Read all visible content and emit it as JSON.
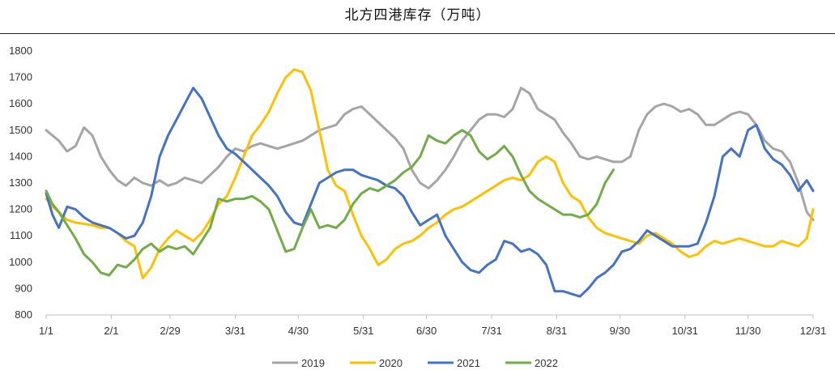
{
  "chart_data": {
    "type": "line",
    "title": "北方四港库存（万吨）",
    "xlabel": "",
    "ylabel": "",
    "ylim": [
      800,
      1800
    ],
    "yticks": [
      800,
      900,
      1000,
      1100,
      1200,
      1300,
      1400,
      1500,
      1600,
      1700,
      1800
    ],
    "xlim": [
      0,
      365
    ],
    "xticks": [
      {
        "label": "1/1",
        "day": 0
      },
      {
        "label": "2/1",
        "day": 31
      },
      {
        "label": "2/29",
        "day": 59
      },
      {
        "label": "3/31",
        "day": 90
      },
      {
        "label": "4/30",
        "day": 120
      },
      {
        "label": "5/31",
        "day": 151
      },
      {
        "label": "6/30",
        "day": 181
      },
      {
        "label": "7/31",
        "day": 212
      },
      {
        "label": "8/31",
        "day": 243
      },
      {
        "label": "9/30",
        "day": 273
      },
      {
        "label": "10/31",
        "day": 304
      },
      {
        "label": "11/30",
        "day": 334
      },
      {
        "label": "12/31",
        "day": 365
      }
    ],
    "grid": false,
    "legend": "bottom",
    "series": [
      {
        "name": "2019",
        "color": "#A5A5A5",
        "x": [
          0,
          3,
          6,
          10,
          14,
          18,
          22,
          26,
          30,
          34,
          38,
          42,
          46,
          50,
          54,
          58,
          62,
          66,
          70,
          74,
          78,
          82,
          86,
          90,
          94,
          98,
          102,
          106,
          110,
          114,
          118,
          122,
          126,
          130,
          134,
          138,
          142,
          146,
          150,
          154,
          158,
          162,
          166,
          170,
          174,
          178,
          182,
          186,
          190,
          194,
          198,
          202,
          206,
          210,
          214,
          218,
          222,
          226,
          230,
          234,
          238,
          242,
          246,
          250,
          254,
          258,
          262,
          266,
          270,
          274,
          278,
          282,
          286,
          290,
          294,
          298,
          302,
          306,
          310,
          314,
          318,
          322,
          326,
          330,
          334,
          338,
          342,
          346,
          350,
          354,
          358,
          362,
          365
        ],
        "y": [
          1500,
          1480,
          1460,
          1420,
          1440,
          1510,
          1480,
          1400,
          1350,
          1310,
          1290,
          1320,
          1300,
          1290,
          1310,
          1290,
          1300,
          1320,
          1310,
          1300,
          1330,
          1360,
          1400,
          1430,
          1420,
          1440,
          1450,
          1440,
          1430,
          1440,
          1450,
          1460,
          1480,
          1500,
          1510,
          1520,
          1560,
          1580,
          1590,
          1560,
          1530,
          1500,
          1470,
          1430,
          1350,
          1300,
          1280,
          1310,
          1350,
          1400,
          1460,
          1500,
          1540,
          1560,
          1560,
          1550,
          1580,
          1660,
          1640,
          1580,
          1560,
          1540,
          1490,
          1450,
          1400,
          1390,
          1400,
          1390,
          1380,
          1380,
          1400,
          1500,
          1560,
          1590,
          1600,
          1590,
          1570,
          1580,
          1560,
          1520,
          1520,
          1540,
          1560,
          1570,
          1560,
          1520,
          1460,
          1430,
          1420,
          1380,
          1300,
          1190,
          1160
        ]
      },
      {
        "name": "2020",
        "color": "#FFC000",
        "x": [
          0,
          3,
          6,
          10,
          14,
          18,
          22,
          26,
          30,
          34,
          38,
          42,
          46,
          50,
          54,
          58,
          62,
          66,
          70,
          74,
          78,
          82,
          86,
          90,
          94,
          98,
          102,
          106,
          110,
          114,
          118,
          122,
          126,
          130,
          134,
          138,
          142,
          146,
          150,
          154,
          158,
          162,
          166,
          170,
          174,
          178,
          182,
          186,
          190,
          194,
          198,
          202,
          206,
          210,
          214,
          218,
          222,
          226,
          230,
          234,
          238,
          242,
          246,
          250,
          254,
          258,
          262,
          266,
          270,
          274,
          278,
          282,
          286,
          290,
          294,
          298,
          302,
          306,
          310,
          314,
          318,
          322,
          326,
          330,
          334,
          338,
          342,
          346,
          350,
          354,
          358,
          362,
          365
        ],
        "y": [
          1240,
          1210,
          1190,
          1160,
          1150,
          1145,
          1140,
          1130,
          1130,
          1110,
          1080,
          1060,
          940,
          980,
          1050,
          1090,
          1120,
          1100,
          1080,
          1110,
          1160,
          1220,
          1250,
          1320,
          1400,
          1480,
          1520,
          1570,
          1640,
          1700,
          1730,
          1720,
          1650,
          1500,
          1350,
          1290,
          1270,
          1180,
          1100,
          1050,
          990,
          1010,
          1050,
          1070,
          1080,
          1100,
          1130,
          1150,
          1180,
          1200,
          1210,
          1230,
          1250,
          1270,
          1290,
          1310,
          1320,
          1310,
          1330,
          1380,
          1400,
          1380,
          1300,
          1250,
          1230,
          1170,
          1130,
          1110,
          1100,
          1090,
          1080,
          1070,
          1100,
          1110,
          1090,
          1070,
          1040,
          1020,
          1030,
          1060,
          1080,
          1070,
          1080,
          1090,
          1080,
          1070,
          1060,
          1060,
          1080,
          1070,
          1060,
          1090,
          1200
        ]
      },
      {
        "name": "2021",
        "color": "#4472C4",
        "x": [
          0,
          3,
          6,
          10,
          14,
          18,
          22,
          26,
          30,
          34,
          38,
          42,
          46,
          50,
          54,
          58,
          62,
          66,
          70,
          74,
          78,
          82,
          86,
          90,
          94,
          98,
          102,
          106,
          110,
          114,
          118,
          122,
          126,
          130,
          134,
          138,
          142,
          146,
          150,
          154,
          158,
          162,
          166,
          170,
          174,
          178,
          182,
          186,
          190,
          194,
          198,
          202,
          206,
          210,
          214,
          218,
          222,
          226,
          230,
          234,
          238,
          242,
          246,
          250,
          254,
          258,
          262,
          266,
          270,
          274,
          278,
          282,
          286,
          290,
          294,
          298,
          302,
          306,
          310,
          314,
          318,
          322,
          326,
          330,
          334,
          338,
          342,
          346,
          350,
          354,
          358,
          362,
          365
        ],
        "y": [
          1260,
          1180,
          1130,
          1210,
          1200,
          1170,
          1150,
          1140,
          1130,
          1110,
          1090,
          1100,
          1150,
          1250,
          1400,
          1480,
          1540,
          1600,
          1660,
          1620,
          1550,
          1480,
          1430,
          1410,
          1380,
          1350,
          1320,
          1290,
          1250,
          1190,
          1150,
          1140,
          1220,
          1300,
          1320,
          1340,
          1350,
          1350,
          1330,
          1320,
          1310,
          1290,
          1280,
          1250,
          1190,
          1140,
          1160,
          1180,
          1100,
          1050,
          1000,
          970,
          960,
          990,
          1010,
          1080,
          1070,
          1040,
          1050,
          1030,
          990,
          890,
          890,
          880,
          870,
          900,
          940,
          960,
          990,
          1040,
          1050,
          1080,
          1120,
          1100,
          1080,
          1060,
          1060,
          1060,
          1070,
          1150,
          1250,
          1400,
          1430,
          1400,
          1500,
          1520,
          1430,
          1390,
          1370,
          1330,
          1270,
          1310,
          1270
        ]
      },
      {
        "name": "2022",
        "color": "#70AD47",
        "x": [
          0,
          3,
          6,
          10,
          14,
          18,
          22,
          26,
          30,
          34,
          38,
          42,
          46,
          50,
          54,
          58,
          62,
          66,
          70,
          74,
          78,
          82,
          86,
          90,
          94,
          98,
          102,
          106,
          110,
          114,
          118,
          122,
          126,
          130,
          134,
          138,
          142,
          146,
          150,
          154,
          158,
          162,
          166,
          170,
          174,
          178,
          182,
          186,
          190,
          194,
          198,
          202,
          206,
          210,
          214,
          218,
          222,
          226,
          230,
          234,
          238,
          242,
          246,
          250,
          254,
          258,
          262,
          266,
          270,
          274,
          278,
          282,
          286,
          290,
          294,
          298,
          302,
          306,
          310,
          314,
          318,
          322,
          326,
          330,
          334,
          338,
          342,
          346,
          350,
          354,
          358,
          362,
          365
        ],
        "y": [
          1270,
          1220,
          1190,
          1140,
          1090,
          1030,
          1000,
          960,
          950,
          990,
          980,
          1010,
          1050,
          1070,
          1040,
          1060,
          1050,
          1060,
          1030,
          1080,
          1130,
          1240,
          1230,
          1240,
          1240,
          1250,
          1230,
          1200,
          1120,
          1040,
          1050,
          1130,
          1200,
          1130,
          1140,
          1130,
          1160,
          1220,
          1260,
          1280,
          1270,
          1290,
          1310,
          1340,
          1360,
          1400,
          1480,
          1460,
          1450,
          1480,
          1500,
          1480,
          1420,
          1390,
          1410,
          1440,
          1400,
          1330,
          1270,
          1240,
          1220,
          1200,
          1180,
          1180,
          1170,
          1180,
          1220,
          1300,
          1350,
          null,
          null,
          null,
          null,
          null,
          null,
          null,
          null,
          null,
          null,
          null,
          null,
          null,
          null,
          null,
          null,
          null,
          null,
          null,
          null,
          null,
          null,
          null,
          null
        ]
      }
    ]
  }
}
